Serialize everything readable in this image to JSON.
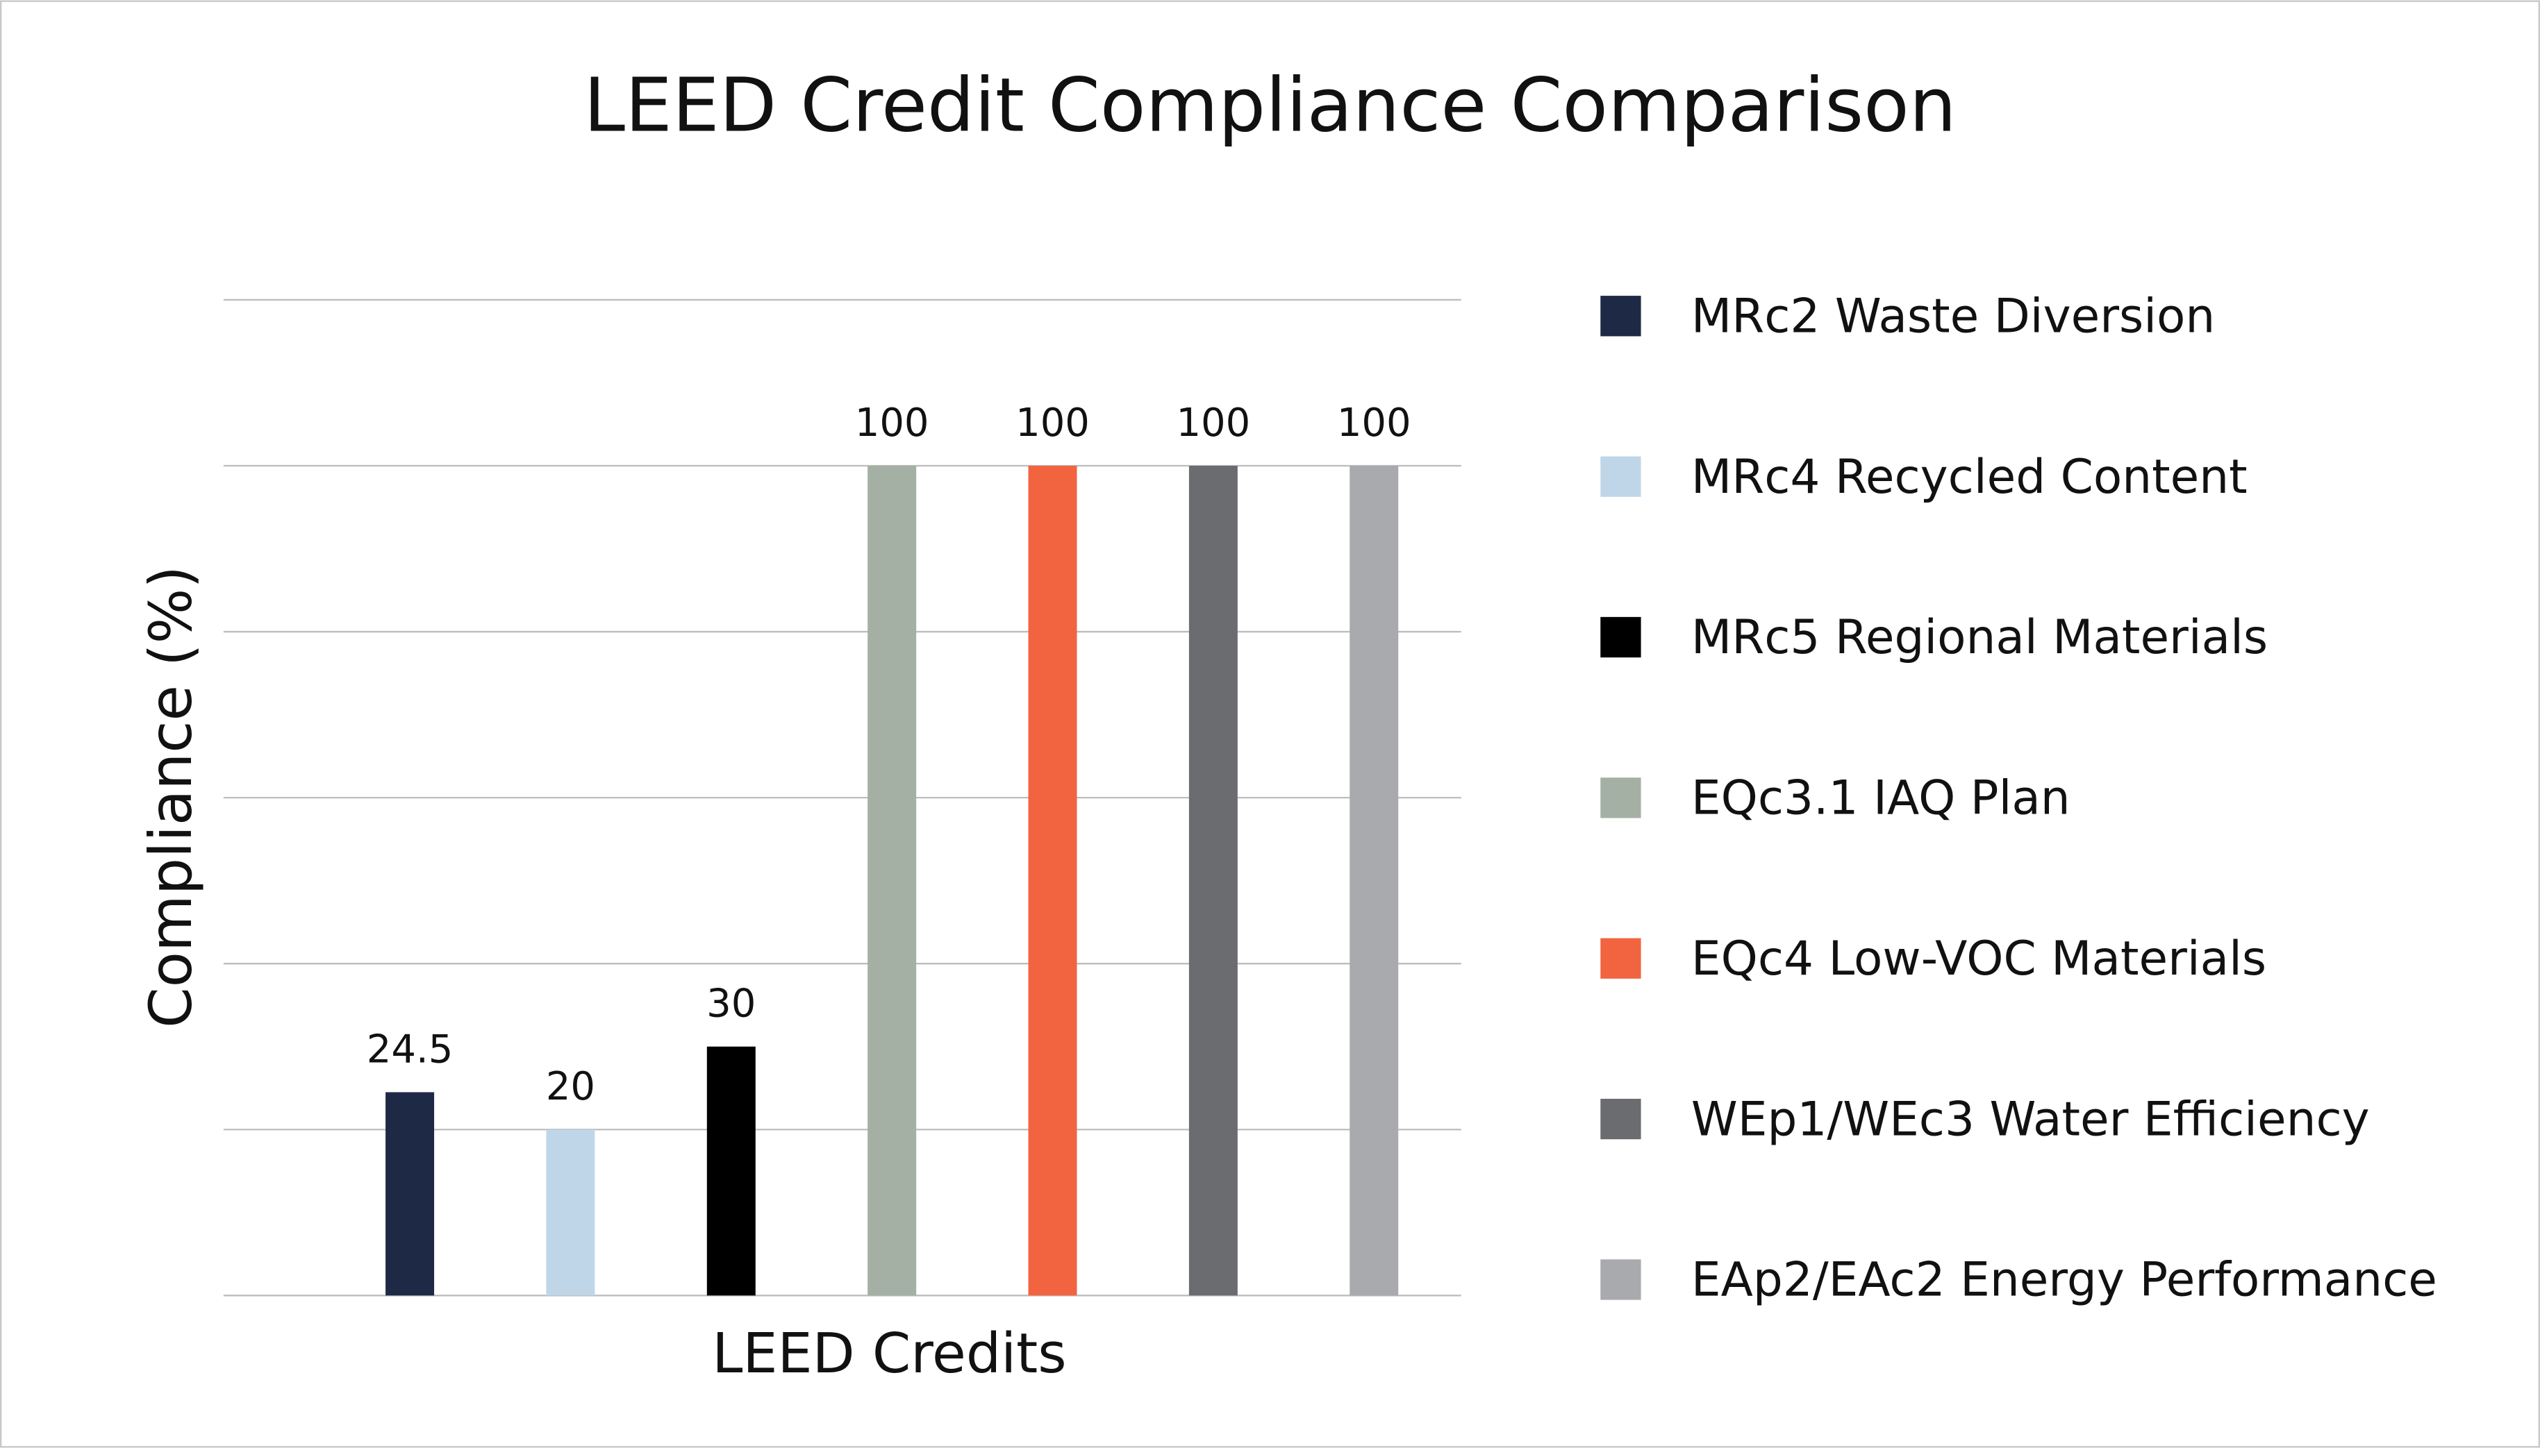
{
  "chart_data": {
    "type": "bar",
    "title": "LEED Credit Compliance Comparison",
    "x_label": "LEED Credits",
    "y_label": "Compliance (%)",
    "ylim": [
      0,
      120
    ],
    "yticks": [
      0,
      20,
      40,
      60,
      80,
      100,
      120
    ],
    "grid": true,
    "series": [
      {
        "name": "MRc2 Waste Diversion",
        "color": "#1e2a45",
        "values": [
          24.5
        ]
      },
      {
        "name": "MRc4 Recycled Content",
        "color": "#bfd6e9",
        "values": [
          20
        ]
      },
      {
        "name": "MRc5 Regional Materials",
        "color": "#000000",
        "values": [
          30
        ]
      },
      {
        "name": "EQc3.1 IAQ Plan",
        "color": "#a4b0a4",
        "values": [
          100
        ]
      },
      {
        "name": "EQc4 Low-VOC Materials",
        "color": "#f26440",
        "values": [
          100
        ]
      },
      {
        "name": "WEp1/WEc3 Water Efficiency",
        "color": "#6b6c70",
        "values": [
          100
        ]
      },
      {
        "name": "EAp2/EAc2 Energy Performance",
        "color": "#a9aaad",
        "values": [
          100
        ]
      }
    ]
  }
}
